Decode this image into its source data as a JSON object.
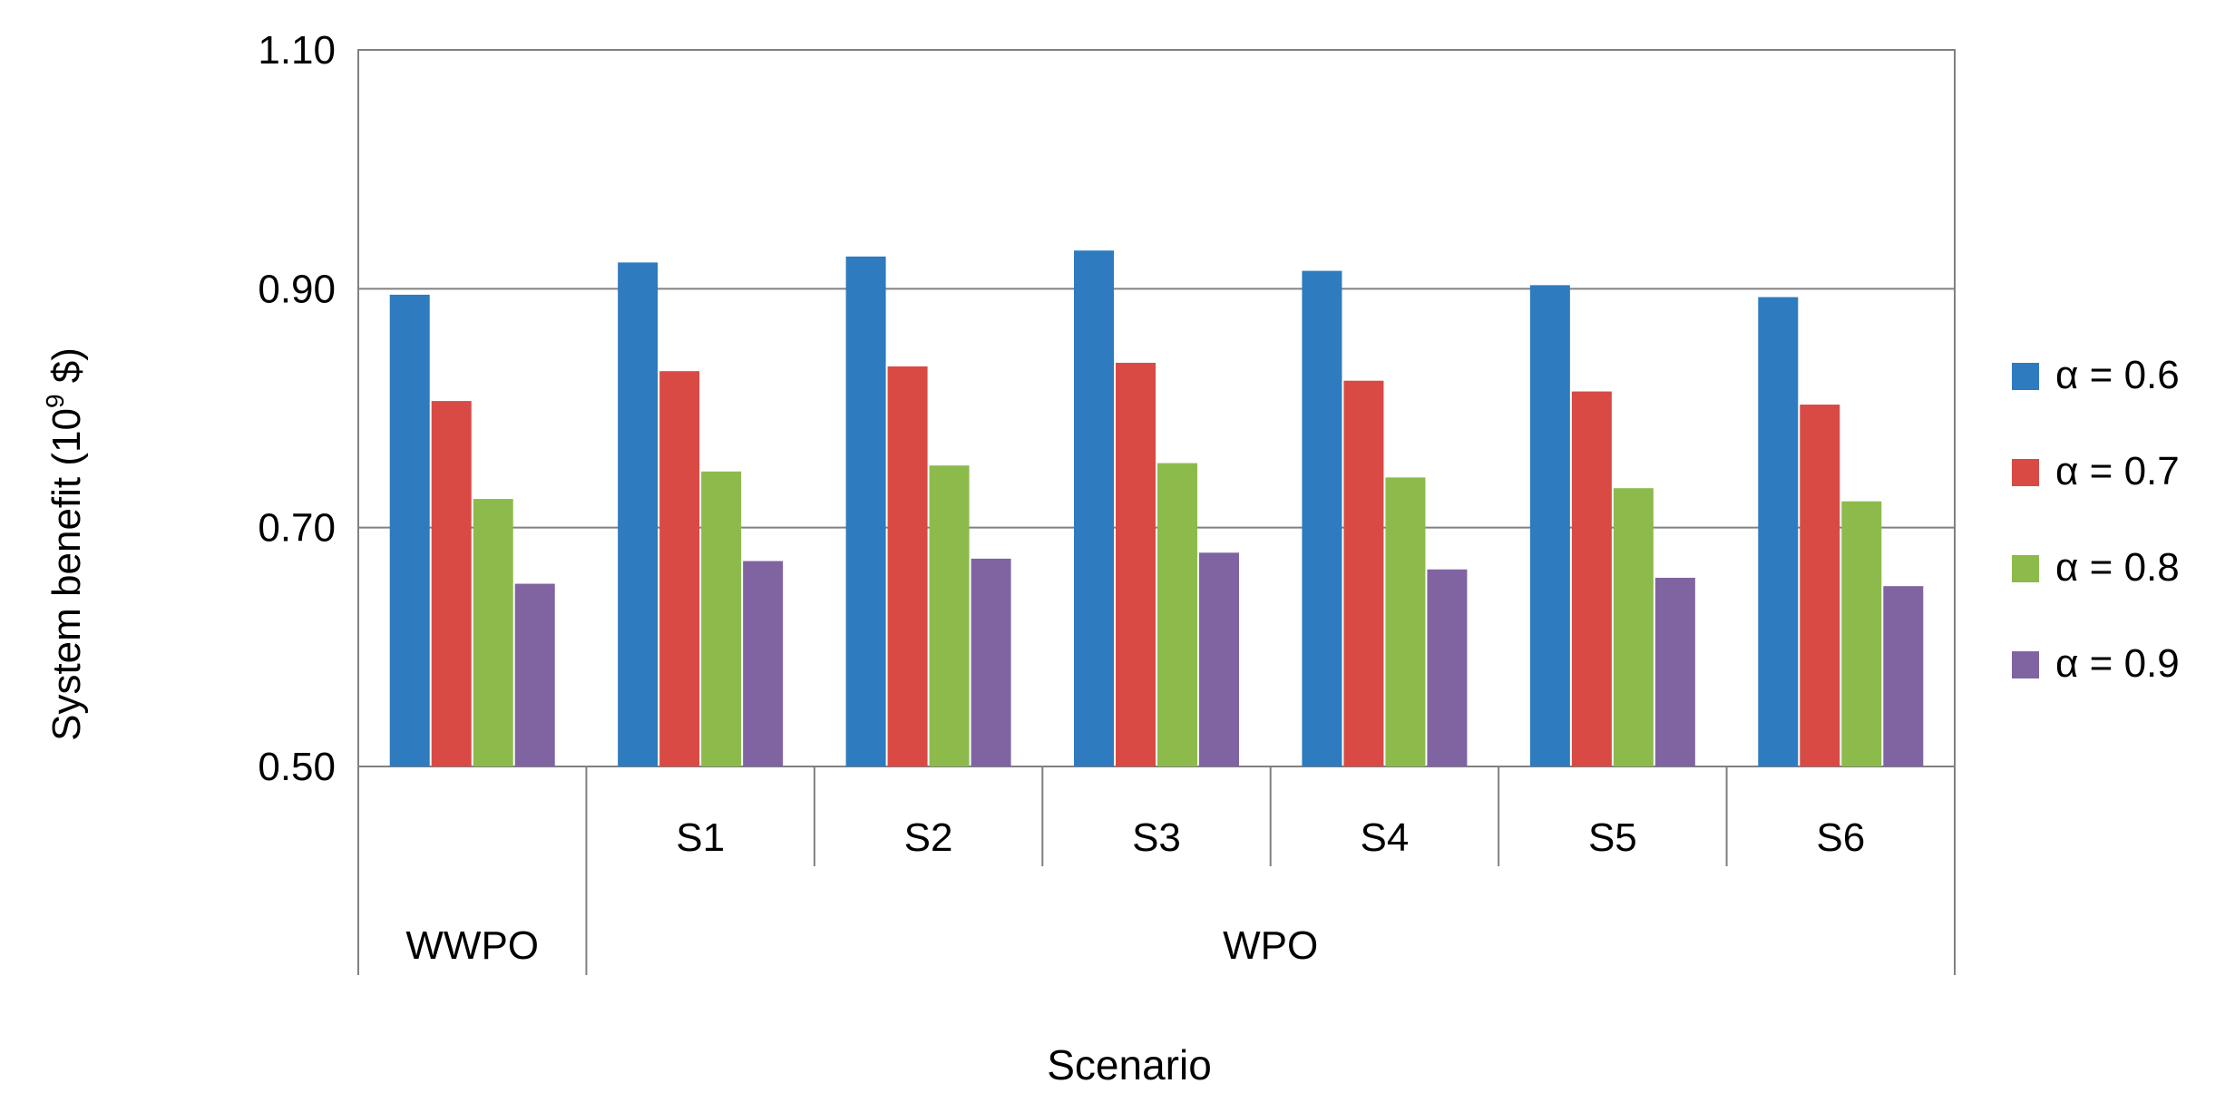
{
  "chart_data": {
    "type": "bar",
    "title": "",
    "xlabel": "Scenario",
    "ylabel": "System benefit (10",
    "ylabel_sup": "9",
    "ylabel_suffix": " $)",
    "ylim": [
      0.5,
      1.1
    ],
    "yticks": [
      "0.50",
      "0.70",
      "0.90",
      "1.10"
    ],
    "grid": true,
    "legend_position": "right",
    "groups": [
      {
        "label": "WWPO",
        "categories": [
          ""
        ]
      },
      {
        "label": "WPO",
        "categories": [
          "S1",
          "S2",
          "S3",
          "S4",
          "S5",
          "S6"
        ]
      }
    ],
    "categories": [
      "",
      "S1",
      "S2",
      "S3",
      "S4",
      "S5",
      "S6"
    ],
    "series": [
      {
        "name": "α = 0.6",
        "color": "#2e7bbf",
        "values": [
          0.895,
          0.922,
          0.927,
          0.932,
          0.915,
          0.903,
          0.893
        ]
      },
      {
        "name": "α = 0.7",
        "color": "#d94a45",
        "values": [
          0.806,
          0.831,
          0.835,
          0.838,
          0.823,
          0.814,
          0.803
        ]
      },
      {
        "name": "α = 0.8",
        "color": "#8cbb4b",
        "values": [
          0.724,
          0.747,
          0.752,
          0.754,
          0.742,
          0.733,
          0.722
        ]
      },
      {
        "name": "α = 0.9",
        "color": "#8064a2",
        "values": [
          0.653,
          0.672,
          0.674,
          0.679,
          0.665,
          0.658,
          0.651
        ]
      }
    ]
  }
}
